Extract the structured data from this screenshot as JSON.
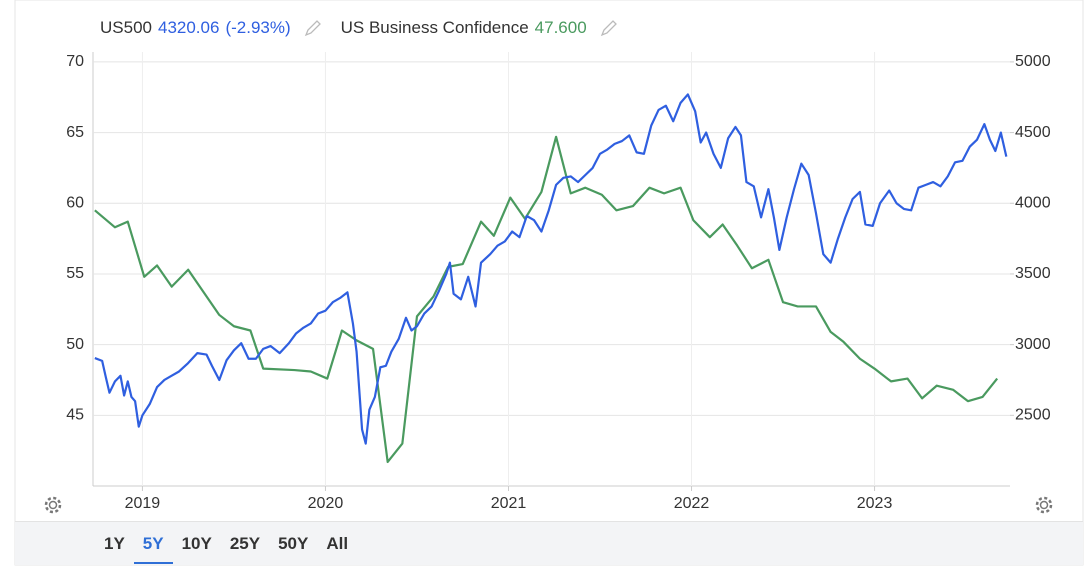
{
  "chart_data": {
    "type": "line",
    "xlim": [
      2018.73,
      2023.74
    ],
    "xticks": [
      2019,
      2020,
      2021,
      2022,
      2023
    ],
    "ylim": [
      40,
      70.7
    ],
    "yticks": [
      45,
      50,
      55,
      60,
      65,
      70
    ],
    "y2lim": [
      2000,
      5070
    ],
    "y2ticks": [
      2500,
      3000,
      3500,
      4000,
      4500,
      5000
    ],
    "grid": true,
    "series": [
      {
        "name": "US500",
        "legend_value": "4320.06",
        "legend_change": "(-2.93%)",
        "color": "#2f5fe0",
        "axis": "y2",
        "x": [
          2018.74,
          2018.78,
          2018.8,
          2018.82,
          2018.85,
          2018.88,
          2018.9,
          2018.92,
          2018.94,
          2018.96,
          2018.98,
          2019.0,
          2019.04,
          2019.08,
          2019.12,
          2019.16,
          2019.2,
          2019.25,
          2019.3,
          2019.35,
          2019.38,
          2019.42,
          2019.46,
          2019.5,
          2019.54,
          2019.58,
          2019.62,
          2019.66,
          2019.7,
          2019.75,
          2019.8,
          2019.84,
          2019.88,
          2019.92,
          2019.96,
          2020.0,
          2020.04,
          2020.08,
          2020.12,
          2020.15,
          2020.17,
          2020.2,
          2020.22,
          2020.24,
          2020.27,
          2020.3,
          2020.33,
          2020.36,
          2020.4,
          2020.44,
          2020.47,
          2020.5,
          2020.54,
          2020.58,
          2020.62,
          2020.66,
          2020.68,
          2020.7,
          2020.74,
          2020.78,
          2020.82,
          2020.85,
          2020.9,
          2020.94,
          2020.98,
          2021.02,
          2021.06,
          2021.1,
          2021.14,
          2021.18,
          2021.22,
          2021.26,
          2021.3,
          2021.34,
          2021.38,
          2021.42,
          2021.46,
          2021.5,
          2021.54,
          2021.58,
          2021.62,
          2021.66,
          2021.7,
          2021.74,
          2021.78,
          2021.82,
          2021.86,
          2021.9,
          2021.94,
          2021.98,
          2022.02,
          2022.05,
          2022.08,
          2022.12,
          2022.16,
          2022.2,
          2022.24,
          2022.27,
          2022.3,
          2022.34,
          2022.38,
          2022.42,
          2022.45,
          2022.48,
          2022.52,
          2022.56,
          2022.6,
          2022.64,
          2022.68,
          2022.72,
          2022.76,
          2022.8,
          2022.84,
          2022.88,
          2022.92,
          2022.95,
          2022.99,
          2023.03,
          2023.08,
          2023.12,
          2023.16,
          2023.2,
          2023.24,
          2023.28,
          2023.32,
          2023.36,
          2023.4,
          2023.44,
          2023.48,
          2023.52,
          2023.56,
          2023.6,
          2023.63,
          2023.66,
          2023.69,
          2023.72
        ],
        "values": [
          2905,
          2885,
          2770,
          2660,
          2740,
          2780,
          2640,
          2740,
          2630,
          2600,
          2420,
          2500,
          2580,
          2700,
          2750,
          2780,
          2810,
          2870,
          2940,
          2930,
          2850,
          2750,
          2890,
          2960,
          3010,
          2900,
          2900,
          2970,
          2990,
          2940,
          3010,
          3080,
          3120,
          3150,
          3220,
          3240,
          3300,
          3330,
          3370,
          3150,
          2950,
          2400,
          2300,
          2540,
          2630,
          2840,
          2850,
          2950,
          3040,
          3190,
          3100,
          3130,
          3220,
          3270,
          3380,
          3500,
          3580,
          3360,
          3320,
          3480,
          3270,
          3580,
          3640,
          3700,
          3730,
          3800,
          3760,
          3910,
          3880,
          3800,
          3950,
          4130,
          4180,
          4190,
          4150,
          4200,
          4250,
          4350,
          4380,
          4420,
          4440,
          4480,
          4360,
          4350,
          4550,
          4660,
          4690,
          4580,
          4710,
          4770,
          4650,
          4430,
          4500,
          4350,
          4250,
          4460,
          4540,
          4480,
          4150,
          4120,
          3900,
          4100,
          3900,
          3670,
          3900,
          4100,
          4280,
          4200,
          3930,
          3640,
          3580,
          3750,
          3900,
          4030,
          4080,
          3850,
          3840,
          4000,
          4090,
          4000,
          3960,
          3950,
          4110,
          4130,
          4150,
          4120,
          4190,
          4290,
          4300,
          4400,
          4450,
          4560,
          4450,
          4370,
          4500,
          4330
        ]
      },
      {
        "name": "US Business Confidence",
        "legend_value": "47.600",
        "color": "#4a9a5f",
        "x": [
          2018.74,
          2018.85,
          2018.92,
          2019.01,
          2019.08,
          2019.16,
          2019.25,
          2019.42,
          2019.5,
          2019.59,
          2019.66,
          2019.83,
          2019.92,
          2020.01,
          2020.09,
          2020.17,
          2020.26,
          2020.34,
          2020.42,
          2020.5,
          2020.59,
          2020.67,
          2020.75,
          2020.85,
          2020.92,
          2021.01,
          2021.09,
          2021.18,
          2021.26,
          2021.34,
          2021.42,
          2021.51,
          2021.59,
          2021.68,
          2021.77,
          2021.85,
          2021.94,
          2022.01,
          2022.1,
          2022.17,
          2022.25,
          2022.33,
          2022.42,
          2022.5,
          2022.58,
          2022.68,
          2022.76,
          2022.83,
          2022.92,
          2023.0,
          2023.09,
          2023.18,
          2023.26,
          2023.34,
          2023.43,
          2023.51,
          2023.59,
          2023.67
        ],
        "values": [
          59.5,
          58.3,
          58.7,
          54.8,
          55.6,
          54.1,
          55.3,
          52.1,
          51.3,
          51.0,
          48.3,
          48.2,
          48.1,
          47.6,
          51.0,
          50.3,
          49.7,
          41.7,
          43.0,
          52.0,
          53.4,
          55.5,
          55.7,
          58.7,
          57.7,
          60.4,
          58.9,
          60.8,
          64.7,
          60.7,
          61.1,
          60.6,
          59.5,
          59.8,
          61.1,
          60.7,
          61.1,
          58.8,
          57.6,
          58.5,
          57.0,
          55.4,
          56.0,
          53.0,
          52.7,
          52.7,
          50.9,
          50.2,
          49.0,
          48.3,
          47.4,
          47.6,
          46.2,
          47.1,
          46.8,
          46.0,
          46.3,
          47.6
        ]
      }
    ]
  },
  "controls": {
    "ranges": [
      "1Y",
      "5Y",
      "10Y",
      "25Y",
      "50Y",
      "All"
    ],
    "selected": 1
  }
}
